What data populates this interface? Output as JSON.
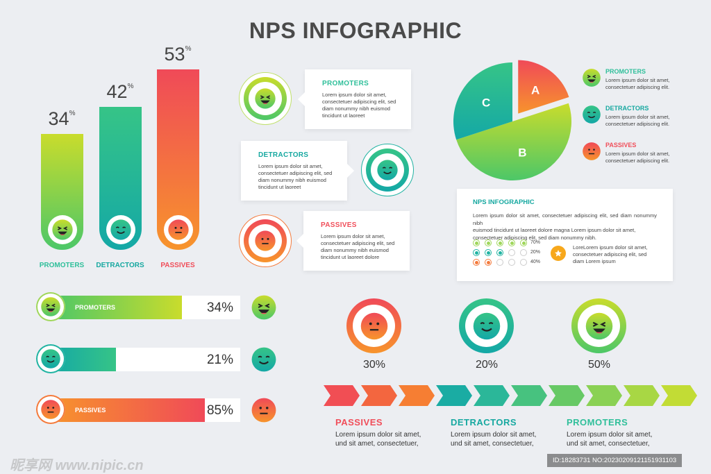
{
  "title": "NPS INFOGRAPHIC",
  "colors": {
    "promoters": "#2fbf9a",
    "detractors": "#16a8a0",
    "passives": "#f04e5a",
    "green_light": "#c7dc2a",
    "orange": "#f6922c"
  },
  "chart_data": [
    {
      "type": "bar",
      "categories": [
        "PROMOTERS",
        "DETRACTORS",
        "PASSIVES"
      ],
      "values": [
        34,
        42,
        53
      ],
      "value_labels": [
        "34",
        "42",
        "53"
      ],
      "unit": "%"
    },
    {
      "type": "bar",
      "orientation": "horizontal",
      "categories": [
        "PROMOTERS",
        "DETRACTORS",
        "PASSIVES"
      ],
      "values": [
        34,
        21,
        85
      ],
      "value_labels": [
        "34%",
        "21%",
        "85%"
      ]
    },
    {
      "type": "pie",
      "labels": [
        "A",
        "B",
        "C"
      ],
      "values": [
        20,
        50,
        30
      ],
      "exploded": "A"
    },
    {
      "type": "table",
      "dot_rows": [
        {
          "filled": 5,
          "label": "70%"
        },
        {
          "filled": 3,
          "label": "20%"
        },
        {
          "filled": 2,
          "label": "40%"
        }
      ]
    },
    {
      "type": "pie",
      "kind": "ring",
      "labels": [
        "30%",
        "20%",
        "50%"
      ],
      "values": [
        30,
        20,
        50
      ]
    }
  ],
  "lorem": "Lorem ipsum dolor sit amet, consectetuer adipiscing elit, sed diam nonummy nibh euismod tincidunt ut laoreet",
  "callouts": [
    {
      "title": "PROMOTERS",
      "l1": "Lorem ipsum dolor sit amet,",
      "l2": "consectetuer adipiscing elit, sed",
      "l3": "diam nonummy nibh euismod",
      "l4": "tincidunt ut laoreet"
    },
    {
      "title": "DETRACTORS",
      "l1": "Lorem ipsum dolor sit amet,",
      "l2": "consectetuer adipiscing elit, sed",
      "l3": "diam nonummy nibh euismod",
      "l4": "tincidunt ut laoreet"
    },
    {
      "title": "PASSIVES",
      "l1": "Lorem ipsum dolor sit amet,",
      "l2": "consectetuer adipiscing elit, sed",
      "l3": "diam nonummy nibh euismod",
      "l4": "tincidunt ut laoreet dolore"
    }
  ],
  "legend": [
    {
      "title": "PROMOTERS",
      "l1": "Lorem ipsum dolor sit amet,",
      "l2": "consectetuer adipiscing elit."
    },
    {
      "title": "DETRACTORS",
      "l1": "Lorem ipsum dolor sit amet,",
      "l2": "consectetuer adipiscing elit."
    },
    {
      "title": "PASSIVES",
      "l1": "Lorem ipsum dolor sit amet,",
      "l2": "consectetuer adipiscing elit."
    }
  ],
  "info_card": {
    "title": "NPS INFOGRAPHIC",
    "body_l1": "Lorem ipsum dolor sit amet, consectetuer adipiscing elit, sed diam nonummy nibh",
    "body_l2": "euismod  tincidunt  ut  laoreet  dolore  magna  Lorem  ipsum  dolor  sit  amet,",
    "body_l3": "consectetuer adipiscing elit, sed diam nonummy nibh.",
    "side_l1": "LoreLorem  ipsum  dolor  sit  amet,",
    "side_l2": "consectetuer   adipiscing   elit,   sed",
    "side_l3": "diam Lorem ipsum"
  },
  "bottom": [
    {
      "title": "PASSIVES",
      "l1": "Lorem ipsum dolor sit amet,",
      "l2": "und sit amet, consectetuer,"
    },
    {
      "title": "DETRACTORS",
      "l1": "Lorem ipsum dolor sit amet,",
      "l2": "und sit amet, consectetuer,"
    },
    {
      "title": "PROMOTERS",
      "l1": "Lorem ipsum dolor sit amet,",
      "l2": "und sit amet, consectetuer,"
    }
  ],
  "watermark": "昵享网 www.nipic.cn",
  "id_strip": "ID:18283731 NO:20230209121151931103"
}
